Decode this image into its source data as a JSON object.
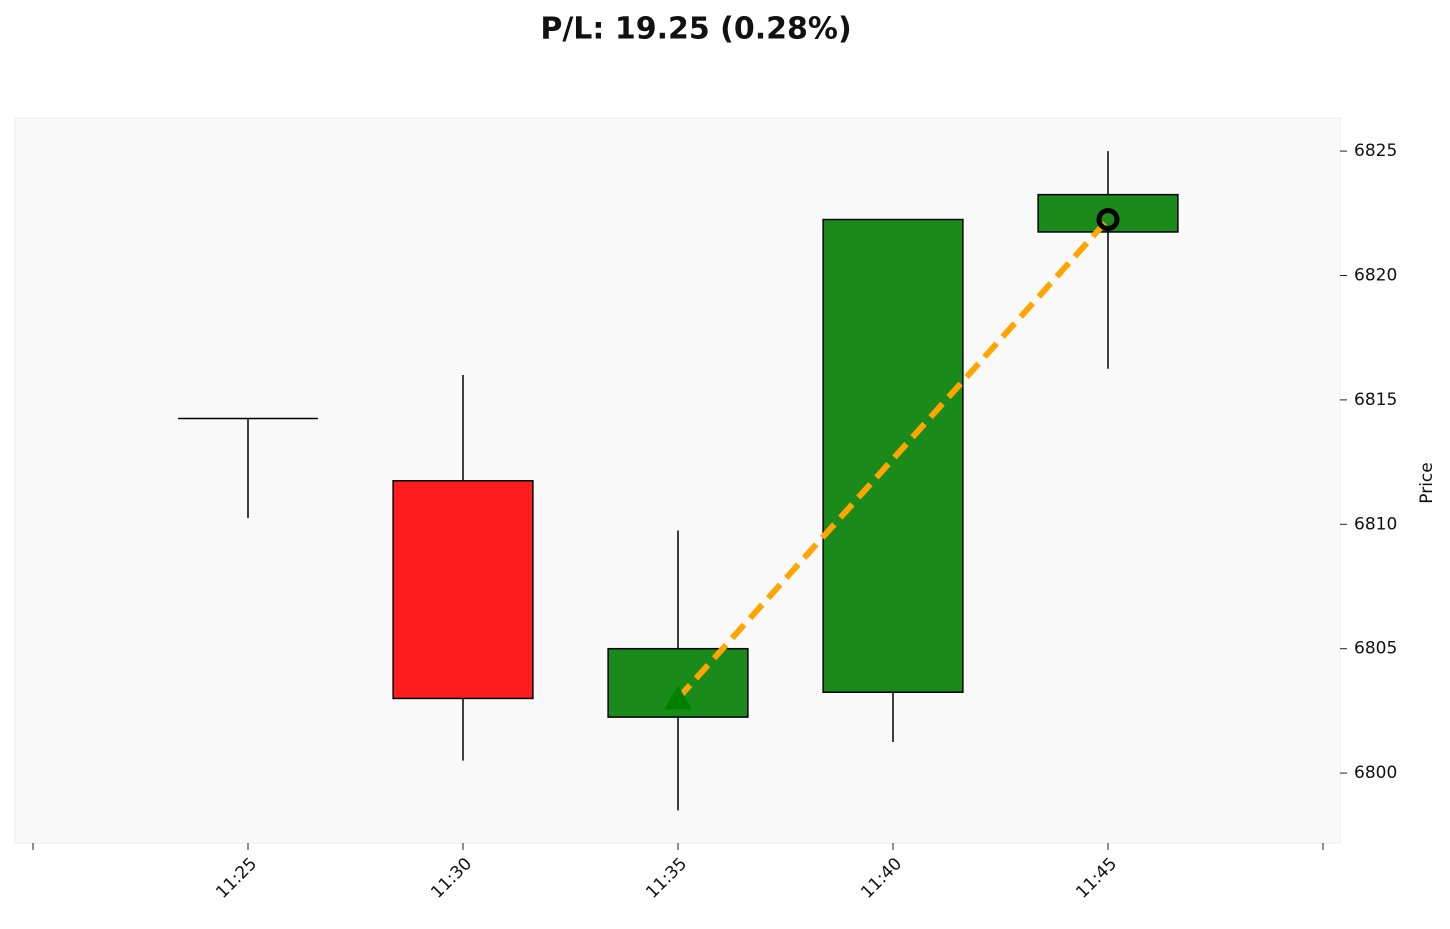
{
  "chart_data": {
    "type": "candlestick",
    "title": "P/L: 19.25 (0.28%)",
    "y_label": "Price",
    "categories": [
      null,
      "11:25",
      "11:30",
      "11:35",
      "11:40",
      "11:45",
      null
    ],
    "open": [
      null,
      6814.25,
      6811.75,
      6802.25,
      6803.25,
      6821.75,
      null
    ],
    "high": [
      null,
      6814.25,
      6816,
      6809.75,
      6822.25,
      6825,
      null
    ],
    "low": [
      null,
      6810.25,
      6800.5,
      6798.5,
      6801.25,
      6816.25,
      null
    ],
    "close": [
      null,
      6814.25,
      6803,
      6805,
      6822.25,
      6823.25,
      null
    ],
    "up_color": "#1a8a1a",
    "down_color": "#ff1c1c",
    "entry": {
      "x": "11:35",
      "price": 6803,
      "color": "#008000"
    },
    "exit": {
      "x": "11:45",
      "price": 6822.25,
      "color": "#000000"
    },
    "trade_line_color": "#ffa500",
    "ylim": [
      6797.19,
      6826.33
    ],
    "yticks": [
      6800,
      6805,
      6810,
      6815,
      6820,
      6825
    ]
  }
}
